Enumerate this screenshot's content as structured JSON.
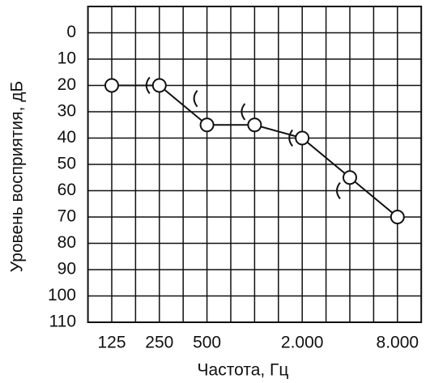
{
  "chart_data": {
    "type": "audiogram",
    "x_label": "Частота, Гц",
    "y_label": "Уровень восприятия, дБ",
    "categories": [
      "125",
      "250",
      "500",
      null,
      "2.000",
      null,
      "8.000"
    ],
    "ylim": [
      -10,
      110
    ],
    "yticks": [
      0,
      10,
      20,
      30,
      40,
      50,
      60,
      70,
      80,
      90,
      100,
      110
    ],
    "y_inverted": true,
    "grid": true,
    "series": [
      {
        "marker": "circle",
        "color": "#111111",
        "line": true,
        "values": [
          20,
          20,
          35,
          35,
          40,
          55,
          70
        ]
      },
      {
        "marker": "bracket",
        "color": "#111111",
        "line": false,
        "values": [
          null,
          20,
          25,
          30,
          40,
          60,
          null
        ]
      }
    ]
  }
}
